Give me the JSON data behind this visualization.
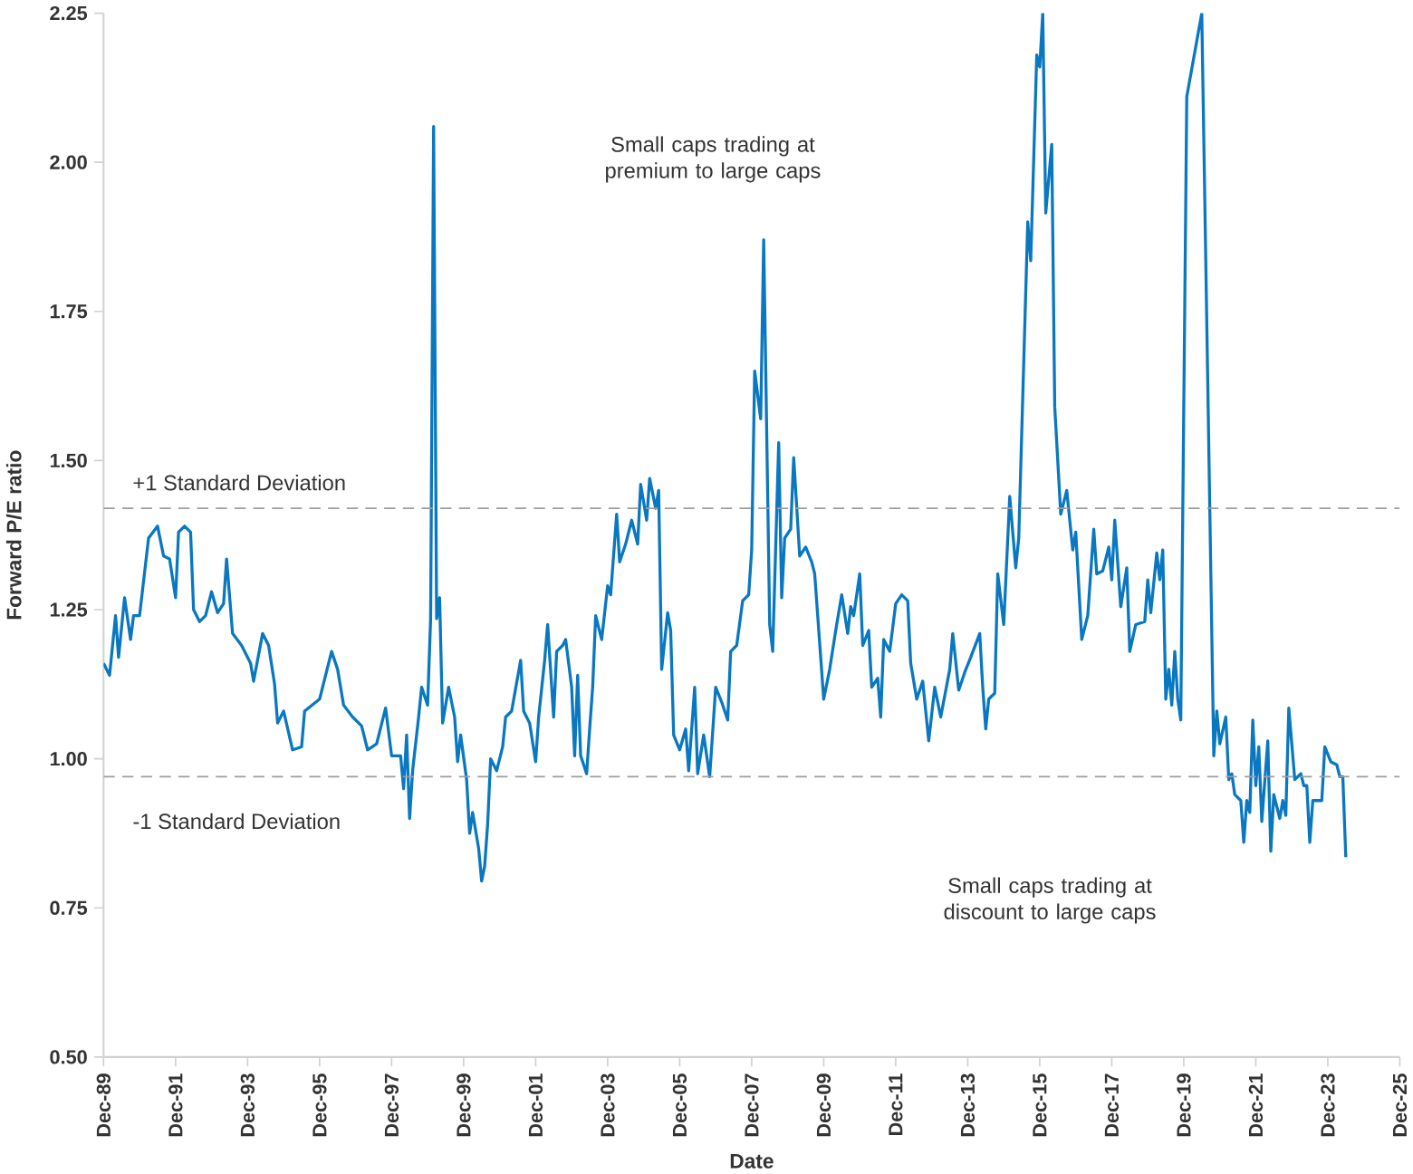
{
  "chart_data": {
    "type": "line",
    "xlabel": "Date",
    "ylabel": "Forward P/E ratio",
    "annotations": [
      "Small caps trading at premium to large caps",
      "Small caps trading at discount to large caps"
    ],
    "xlim": [
      "1989-12",
      "2025-12"
    ],
    "ylim": [
      0.5,
      2.25
    ],
    "xticks": [
      {
        "value": "1989-12",
        "label": "Dec-89"
      },
      {
        "value": "1991-12",
        "label": "Dec-91"
      },
      {
        "value": "1993-12",
        "label": "Dec-93"
      },
      {
        "value": "1995-12",
        "label": "Dec-95"
      },
      {
        "value": "1997-12",
        "label": "Dec-97"
      },
      {
        "value": "1999-12",
        "label": "Dec-99"
      },
      {
        "value": "2001-12",
        "label": "Dec-01"
      },
      {
        "value": "2003-12",
        "label": "Dec-03"
      },
      {
        "value": "2005-12",
        "label": "Dec-05"
      },
      {
        "value": "2007-12",
        "label": "Dec-07"
      },
      {
        "value": "2009-12",
        "label": "Dec-09"
      },
      {
        "value": "2011-12",
        "label": "Dec-11"
      },
      {
        "value": "2013-12",
        "label": "Dec-13"
      },
      {
        "value": "2015-12",
        "label": "Dec-15"
      },
      {
        "value": "2017-12",
        "label": "Dec-17"
      },
      {
        "value": "2019-12",
        "label": "Dec-19"
      },
      {
        "value": "2021-12",
        "label": "Dec-21"
      },
      {
        "value": "2023-12",
        "label": "Dec-23"
      },
      {
        "value": "2025-12",
        "label": "Dec-25"
      }
    ],
    "yticks": [
      {
        "value": 0.5,
        "label": "0.50"
      },
      {
        "value": 0.75,
        "label": "0.75"
      },
      {
        "value": 1.0,
        "label": "1.00"
      },
      {
        "value": 1.25,
        "label": "1.25"
      },
      {
        "value": 1.5,
        "label": "1.50"
      },
      {
        "value": 1.75,
        "label": "1.75"
      },
      {
        "value": 2.0,
        "label": "2.00"
      },
      {
        "value": 2.25,
        "label": "2.25"
      }
    ],
    "ref_lines": [
      {
        "axis": "y",
        "value": 1.42,
        "label": "+1 Standard Deviation",
        "color": "#9e9e9e",
        "line_style": "dashed"
      },
      {
        "axis": "y",
        "value": 0.97,
        "label": "-1 Standard Deviation",
        "color": "#9e9e9e",
        "line_style": "dashed"
      }
    ],
    "series": [
      {
        "color": "#0a78c0",
        "x": [
          "1989-12",
          "1990-02",
          "1990-04",
          "1990-05",
          "1990-07",
          "1990-09",
          "1990-10",
          "1990-12",
          "1991-03",
          "1991-06",
          "1991-08",
          "1991-10",
          "1991-12",
          "1992-01",
          "1992-03",
          "1992-05",
          "1992-06",
          "1992-08",
          "1992-10",
          "1992-12",
          "1993-02",
          "1993-04",
          "1993-05",
          "1993-07",
          "1993-10",
          "1994-01",
          "1994-02",
          "1994-05",
          "1994-07",
          "1994-09",
          "1994-10",
          "1994-12",
          "1995-03",
          "1995-06",
          "1995-07",
          "1995-12",
          "1996-04",
          "1996-06",
          "1996-08",
          "1996-11",
          "1997-02",
          "1997-04",
          "1997-07",
          "1997-10",
          "1997-12",
          "1998-03",
          "1998-04",
          "1998-05",
          "1998-06",
          "1998-07",
          "1998-09",
          "1998-10",
          "1998-12",
          "1999-01",
          "1999-02",
          "1999-03",
          "1999-04",
          "1999-05",
          "1999-07",
          "1999-09",
          "1999-10",
          "1999-11",
          "2000-01",
          "2000-02",
          "2000-03",
          "2000-05",
          "2000-06",
          "2000-07",
          "2000-08",
          "2000-09",
          "2000-11",
          "2001-01",
          "2001-02",
          "2001-04",
          "2001-07",
          "2001-08",
          "2001-10",
          "2001-12",
          "2002-01",
          "2002-03",
          "2002-04",
          "2002-06",
          "2002-07",
          "2002-09",
          "2002-10",
          "2002-12",
          "2003-01",
          "2003-02",
          "2003-03",
          "2003-05",
          "2003-06",
          "2003-07",
          "2003-08",
          "2003-10",
          "2003-12",
          "2004-01",
          "2004-03",
          "2004-04",
          "2004-06",
          "2004-08",
          "2004-10",
          "2004-11",
          "2005-01",
          "2005-02",
          "2005-04",
          "2005-05",
          "2005-06",
          "2005-08",
          "2005-09",
          "2005-10",
          "2005-12",
          "2006-02",
          "2006-03",
          "2006-05",
          "2006-06",
          "2006-08",
          "2006-10",
          "2006-12",
          "2007-02",
          "2007-04",
          "2007-05",
          "2007-07",
          "2007-09",
          "2007-11",
          "2007-12",
          "2008-01",
          "2008-03",
          "2008-04",
          "2008-05",
          "2008-06",
          "2008-07",
          "2008-09",
          "2008-10",
          "2008-11",
          "2009-01",
          "2009-02",
          "2009-04",
          "2009-06",
          "2009-08",
          "2009-09",
          "2009-12",
          "2010-02",
          "2010-04",
          "2010-06",
          "2010-08",
          "2010-09",
          "2010-10",
          "2010-12",
          "2011-01",
          "2011-03",
          "2011-04",
          "2011-06",
          "2011-07",
          "2011-08",
          "2011-10",
          "2011-12",
          "2012-02",
          "2012-04",
          "2012-05",
          "2012-07",
          "2012-09",
          "2012-11",
          "2013-01",
          "2013-03",
          "2013-06",
          "2013-07",
          "2013-09",
          "2013-11",
          "2014-01",
          "2014-04",
          "2014-05",
          "2014-06",
          "2014-07",
          "2014-09",
          "2014-10",
          "2014-12",
          "2015-02",
          "2015-04",
          "2015-05",
          "2015-08",
          "2015-09",
          "2015-11",
          "2015-12",
          "2016-01",
          "2016-02",
          "2016-04",
          "2016-05",
          "2016-07",
          "2016-09",
          "2016-11",
          "2016-12",
          "2017-02",
          "2017-04",
          "2017-06",
          "2017-07",
          "2017-09",
          "2017-11",
          "2017-12",
          "2018-01",
          "2018-03",
          "2018-05",
          "2018-06",
          "2018-08",
          "2018-11",
          "2018-12",
          "2019-01",
          "2019-03",
          "2019-04",
          "2019-05",
          "2019-06",
          "2019-07",
          "2019-08",
          "2019-09",
          "2019-10",
          "2019-11",
          "2020-01",
          "2020-06",
          "2020-10",
          "2020-11",
          "2020-12",
          "2021-02",
          "2021-03",
          "2021-04",
          "2021-05",
          "2021-07",
          "2021-08",
          "2021-09",
          "2021-10",
          "2021-11",
          "2021-12",
          "2022-01",
          "2022-02",
          "2022-04",
          "2022-05",
          "2022-06",
          "2022-08",
          "2022-09",
          "2022-10",
          "2022-11",
          "2023-01",
          "2023-03",
          "2023-04",
          "2023-05",
          "2023-06",
          "2023-07",
          "2023-10",
          "2023-11",
          "2024-01",
          "2024-03",
          "2024-04",
          "2024-05",
          "2024-06"
        ],
        "values": [
          1.16,
          1.14,
          1.24,
          1.17,
          1.27,
          1.2,
          1.24,
          1.24,
          1.37,
          1.39,
          1.34,
          1.335,
          1.27,
          1.38,
          1.39,
          1.38,
          1.25,
          1.23,
          1.24,
          1.28,
          1.245,
          1.26,
          1.335,
          1.21,
          1.19,
          1.16,
          1.13,
          1.21,
          1.19,
          1.125,
          1.06,
          1.08,
          1.015,
          1.02,
          1.08,
          1.1,
          1.18,
          1.15,
          1.09,
          1.07,
          1.055,
          1.015,
          1.025,
          1.085,
          1.005,
          1.005,
          0.95,
          1.04,
          0.9,
          0.98,
          1.07,
          1.12,
          1.09,
          1.235,
          2.06,
          1.235,
          1.27,
          1.06,
          1.12,
          1.07,
          0.995,
          1.04,
          0.965,
          0.875,
          0.91,
          0.85,
          0.795,
          0.82,
          0.89,
          1.0,
          0.98,
          1.02,
          1.07,
          1.08,
          1.165,
          1.08,
          1.06,
          0.995,
          1.07,
          1.165,
          1.225,
          1.07,
          1.18,
          1.19,
          1.2,
          1.12,
          1.005,
          1.14,
          1.005,
          0.975,
          1.05,
          1.12,
          1.24,
          1.2,
          1.29,
          1.275,
          1.41,
          1.33,
          1.36,
          1.4,
          1.36,
          1.46,
          1.4,
          1.47,
          1.42,
          1.45,
          1.15,
          1.245,
          1.215,
          1.04,
          1.015,
          1.05,
          0.98,
          1.12,
          0.975,
          1.04,
          0.97,
          1.12,
          1.095,
          1.065,
          1.18,
          1.19,
          1.265,
          1.275,
          1.35,
          1.65,
          1.57,
          1.87,
          1.55,
          1.225,
          1.18,
          1.53,
          1.27,
          1.37,
          1.385,
          1.505,
          1.34,
          1.355,
          1.33,
          1.31,
          1.1,
          1.15,
          1.215,
          1.275,
          1.21,
          1.255,
          1.24,
          1.31,
          1.19,
          1.215,
          1.12,
          1.135,
          1.07,
          1.2,
          1.18,
          1.26,
          1.275,
          1.265,
          1.16,
          1.1,
          1.13,
          1.03,
          1.12,
          1.07,
          1.15,
          1.21,
          1.115,
          1.145,
          1.17,
          1.21,
          1.12,
          1.05,
          1.1,
          1.11,
          1.31,
          1.225,
          1.44,
          1.32,
          1.37,
          1.9,
          1.835,
          2.18,
          2.16,
          2.25,
          1.915,
          2.03,
          1.59,
          1.41,
          1.45,
          1.35,
          1.38,
          1.2,
          1.24,
          1.385,
          1.31,
          1.315,
          1.355,
          1.3,
          1.4,
          1.255,
          1.32,
          1.18,
          1.225,
          1.23,
          1.3,
          1.245,
          1.345,
          1.3,
          1.35,
          1.1,
          1.15,
          1.09,
          1.18,
          1.1,
          1.065,
          2.11,
          2.25,
          1.005,
          1.08,
          1.025,
          1.07,
          0.965,
          0.975,
          0.94,
          0.93,
          0.86,
          0.93,
          0.91,
          1.065,
          0.955,
          1.02,
          0.895,
          1.03,
          0.845,
          0.94,
          0.9,
          0.93,
          0.905,
          1.085,
          0.965,
          0.975,
          0.955,
          0.955,
          0.86,
          0.93,
          0.93,
          1.02,
          0.995,
          0.99,
          0.97,
          0.97,
          0.835
        ]
      }
    ]
  }
}
